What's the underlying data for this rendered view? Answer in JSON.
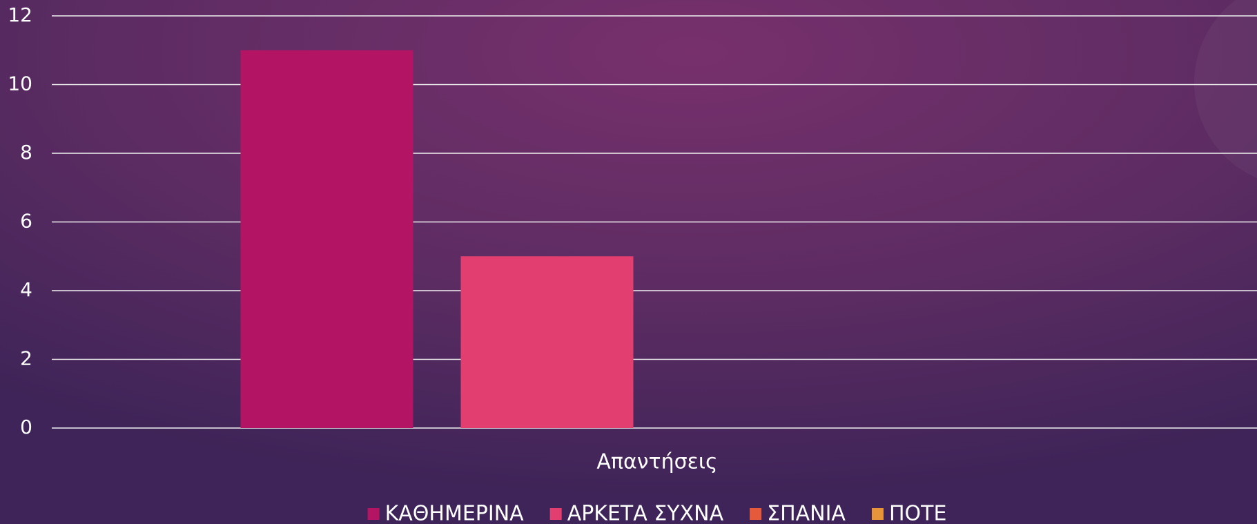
{
  "chart_data": {
    "type": "bar",
    "categories": [
      "Απαντήσεις"
    ],
    "series": [
      {
        "name": "ΚΑΘΗΜΕΡΙΝΑ",
        "color": "#b31463",
        "values": [
          11
        ]
      },
      {
        "name": "ΑΡΚΕΤΑ ΣΥΧΝΑ",
        "color": "#e23e6f",
        "values": [
          5
        ]
      },
      {
        "name": "ΣΠΑΝΙΑ",
        "color": "#e55a3a",
        "values": [
          0
        ]
      },
      {
        "name": "ΠΟΤΕ",
        "color": "#e8943a",
        "values": [
          0
        ]
      }
    ],
    "ylim": [
      0,
      12
    ],
    "yticks": [
      0,
      2,
      4,
      6,
      8,
      10,
      12
    ],
    "grid": true,
    "legend": "bottom"
  }
}
